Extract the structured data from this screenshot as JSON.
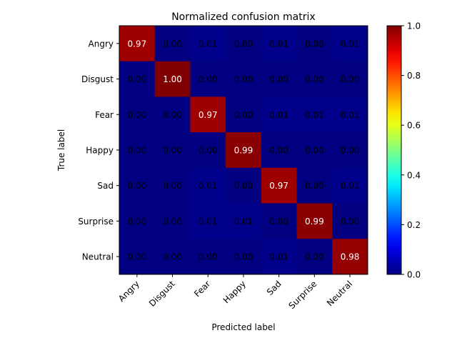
{
  "chart_data": {
    "type": "heatmap",
    "title": "Normalized confusion matrix",
    "xlabel": "Predicted label",
    "ylabel": "True label",
    "x_categories": [
      "Angry",
      "Disgust",
      "Fear",
      "Happy",
      "Sad",
      "Surprise",
      "Neutral"
    ],
    "y_categories": [
      "Angry",
      "Disgust",
      "Fear",
      "Happy",
      "Sad",
      "Surprise",
      "Neutral"
    ],
    "values": [
      [
        0.97,
        0.0,
        0.01,
        0.0,
        0.01,
        0.0,
        0.01
      ],
      [
        0.0,
        1.0,
        0.0,
        0.0,
        0.0,
        0.0,
        0.0
      ],
      [
        0.0,
        0.0,
        0.97,
        0.0,
        0.01,
        0.01,
        0.01
      ],
      [
        0.0,
        0.0,
        0.0,
        0.99,
        0.0,
        0.0,
        0.0
      ],
      [
        0.0,
        0.0,
        0.01,
        0.0,
        0.97,
        0.0,
        0.01
      ],
      [
        0.0,
        0.0,
        0.01,
        0.01,
        0.0,
        0.99,
        0.0
      ],
      [
        0.0,
        0.0,
        0.0,
        0.0,
        0.01,
        0.0,
        0.98
      ]
    ],
    "value_labels": [
      [
        "0.97",
        "0.00",
        "0.01",
        "0.00",
        "0.01",
        "0.00",
        "0.01"
      ],
      [
        "0.00",
        "1.00",
        "0.00",
        "0.00",
        "0.00",
        "0.00",
        "0.00"
      ],
      [
        "0.00",
        "0.00",
        "0.97",
        "0.00",
        "0.01",
        "0.01",
        "0.01"
      ],
      [
        "0.00",
        "0.00",
        "0.00",
        "0.99",
        "0.00",
        "0.00",
        "0.00"
      ],
      [
        "0.00",
        "0.00",
        "0.01",
        "0.00",
        "0.97",
        "0.00",
        "0.01"
      ],
      [
        "0.00",
        "0.00",
        "0.01",
        "0.01",
        "0.00",
        "0.99",
        "0.00"
      ],
      [
        "0.00",
        "0.00",
        "0.00",
        "0.00",
        "0.01",
        "0.00",
        "0.98"
      ]
    ],
    "colormap": "jet",
    "colorbar": {
      "range": [
        0.0,
        1.0
      ],
      "ticks": [
        0.0,
        0.2,
        0.4,
        0.6,
        0.8,
        1.0
      ],
      "tick_labels": [
        "0.0",
        "0.2",
        "0.4",
        "0.6",
        "0.8",
        "1.0"
      ]
    },
    "colors": {
      "text_light": "#ffffff",
      "text_dark": "#000000",
      "axis": "#000000"
    }
  }
}
